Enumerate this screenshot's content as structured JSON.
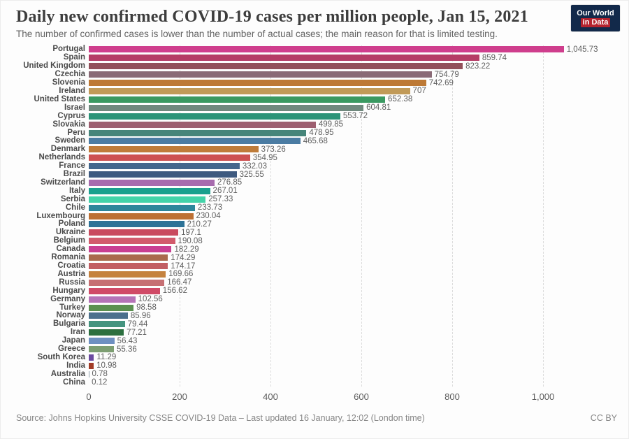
{
  "header": {
    "title": "Daily new confirmed COVID-19 cases per million people, Jan 15, 2021",
    "subtitle": "The number of confirmed cases is lower than the number of actual cases; the main reason for that is limited testing.",
    "logo": {
      "line1": "Our World",
      "line2": "in Data",
      "bg_color": "#12294a",
      "accent_color": "#b5232e"
    }
  },
  "chart_data": {
    "type": "bar",
    "orientation": "horizontal",
    "title": "Daily new confirmed COVID-19 cases per million people, Jan 15, 2021",
    "xlabel": "",
    "ylabel": "",
    "xlim": [
      0,
      1080
    ],
    "grid": true,
    "legend": false,
    "x_ticks": [
      0,
      200,
      400,
      600,
      800,
      1000
    ],
    "x_tick_labels": [
      "0",
      "200",
      "400",
      "600",
      "800",
      "1,000"
    ],
    "categories": [
      "Portugal",
      "Spain",
      "United Kingdom",
      "Czechia",
      "Slovenia",
      "Ireland",
      "United States",
      "Israel",
      "Cyprus",
      "Slovakia",
      "Peru",
      "Sweden",
      "Denmark",
      "Netherlands",
      "France",
      "Brazil",
      "Switzerland",
      "Italy",
      "Serbia",
      "Chile",
      "Luxembourg",
      "Poland",
      "Ukraine",
      "Belgium",
      "Canada",
      "Romania",
      "Croatia",
      "Austria",
      "Russia",
      "Hungary",
      "Germany",
      "Turkey",
      "Norway",
      "Bulgaria",
      "Iran",
      "Japan",
      "Greece",
      "South Korea",
      "India",
      "Australia",
      "China"
    ],
    "values": [
      1045.73,
      859.74,
      823.22,
      754.79,
      742.69,
      707,
      652.38,
      604.81,
      553.72,
      499.85,
      478.95,
      465.68,
      373.26,
      354.95,
      332.03,
      325.55,
      276.85,
      267.01,
      257.33,
      233.73,
      230.04,
      210.27,
      197.1,
      190.08,
      182.29,
      174.29,
      174.17,
      169.66,
      166.47,
      156.62,
      102.56,
      98.58,
      85.96,
      79.44,
      77.21,
      56.43,
      55.36,
      11.29,
      10.98,
      0.78,
      0.12
    ],
    "value_labels": [
      "1,045.73",
      "859.74",
      "823.22",
      "754.79",
      "742.69",
      "707",
      "652.38",
      "604.81",
      "553.72",
      "499.85",
      "478.95",
      "465.68",
      "373.26",
      "354.95",
      "332.03",
      "325.55",
      "276.85",
      "267.01",
      "257.33",
      "233.73",
      "230.04",
      "210.27",
      "197.1",
      "190.08",
      "182.29",
      "174.29",
      "174.17",
      "169.66",
      "166.47",
      "156.62",
      "102.56",
      "98.58",
      "85.96",
      "79.44",
      "77.21",
      "56.43",
      "55.36",
      "11.29",
      "10.98",
      "0.78",
      "0.12"
    ],
    "bar_colors": [
      "#cf3e8d",
      "#b53c66",
      "#92505a",
      "#8a6a76",
      "#bd7935",
      "#c19a58",
      "#3a9961",
      "#70897e",
      "#2b9478",
      "#9d5f70",
      "#46857a",
      "#4b7ca3",
      "#bf7c3a",
      "#cd5151",
      "#44678d",
      "#3e5a7f",
      "#a76cae",
      "#19a08e",
      "#43d3a9",
      "#2d869b",
      "#bd7034",
      "#2e7397",
      "#c94a5e",
      "#d25b6c",
      "#c93f92",
      "#a96a4d",
      "#c25e63",
      "#c5823e",
      "#c66f73",
      "#d04a67",
      "#b573b7",
      "#5b9050",
      "#4c708d",
      "#45947f",
      "#2c6f3f",
      "#6e90c1",
      "#7d9e72",
      "#6b4aa0",
      "#a23c27",
      "#8fa3ad",
      "#8fa3ad"
    ]
  },
  "footer": {
    "source": "Source: Johns Hopkins University CSSE COVID-19 Data – Last updated 16 January, 12:02 (London time)",
    "license": "CC BY"
  }
}
